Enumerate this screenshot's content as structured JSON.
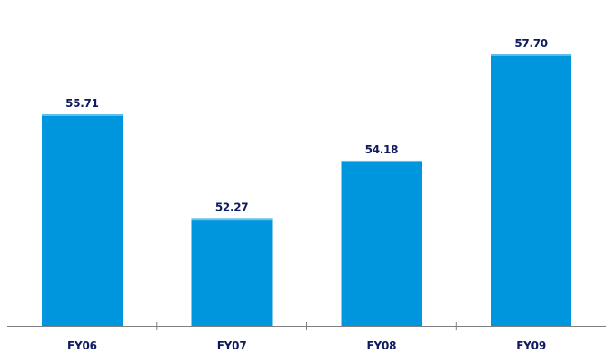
{
  "chart_data": {
    "type": "bar",
    "categories": [
      "FY06",
      "FY07",
      "FY08",
      "FY09"
    ],
    "values": [
      55.71,
      52.27,
      54.18,
      57.7
    ],
    "value_labels": [
      "55.71",
      "52.27",
      "54.18",
      "57.70"
    ],
    "title": "",
    "xlabel": "",
    "ylabel": "",
    "ylim": [
      48.7,
      58.9
    ],
    "grid": false,
    "legend": "none"
  },
  "colors": {
    "bar": "#0096de",
    "bar_top": "#5cc1f0",
    "label": "#101a5e",
    "axis": "#7f7f7f"
  }
}
